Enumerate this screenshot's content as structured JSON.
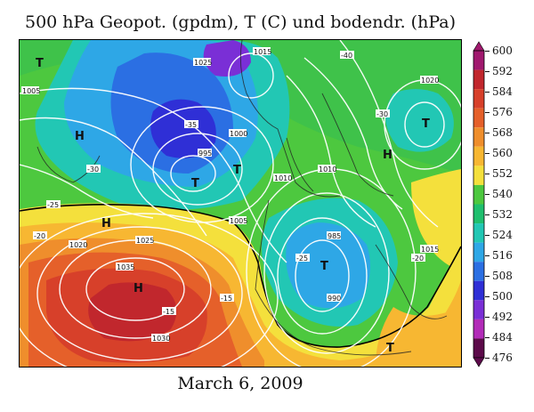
{
  "title": "500 hPa Geopot. (gpdm), T (C) und bodendr. (hPa)",
  "date": "March 6, 2009",
  "colorbar": {
    "labels": [
      "600",
      "592",
      "584",
      "576",
      "568",
      "560",
      "552",
      "540",
      "532",
      "524",
      "516",
      "508",
      "500",
      "492",
      "484",
      "476"
    ],
    "colors": [
      "#a0196e",
      "#c1272d",
      "#d7402a",
      "#e5602a",
      "#ef8e2c",
      "#f7b732",
      "#f4e03c",
      "#4dc83f",
      "#1fbf6e",
      "#22c7b4",
      "#2ea7e6",
      "#2b6fe3",
      "#2f2fd6",
      "#7a2fd6",
      "#b22bb8",
      "#5c0a4a"
    ]
  },
  "map": {
    "pressure_systems": [
      {
        "type": "H",
        "label": "H"
      },
      {
        "type": "H",
        "label": "H"
      },
      {
        "type": "H",
        "label": "H"
      },
      {
        "type": "T",
        "label": "T"
      },
      {
        "type": "T",
        "label": "T"
      },
      {
        "type": "T",
        "label": "T"
      },
      {
        "type": "T",
        "label": "T"
      },
      {
        "type": "H",
        "label": "H"
      },
      {
        "type": "T",
        "label": "T"
      },
      {
        "type": "T",
        "label": "T"
      }
    ],
    "isobar_labels": [
      "1035",
      "1030",
      "1025",
      "1020",
      "1015",
      "1010",
      "1005",
      "1000",
      "995",
      "990",
      "985",
      "1025",
      "1020",
      "1015",
      "1010",
      "1005"
    ],
    "temp_labels": [
      "-15",
      "-20",
      "-25",
      "-30",
      "-35",
      "-40",
      "-15",
      "-20",
      "-25",
      "-30"
    ]
  }
}
